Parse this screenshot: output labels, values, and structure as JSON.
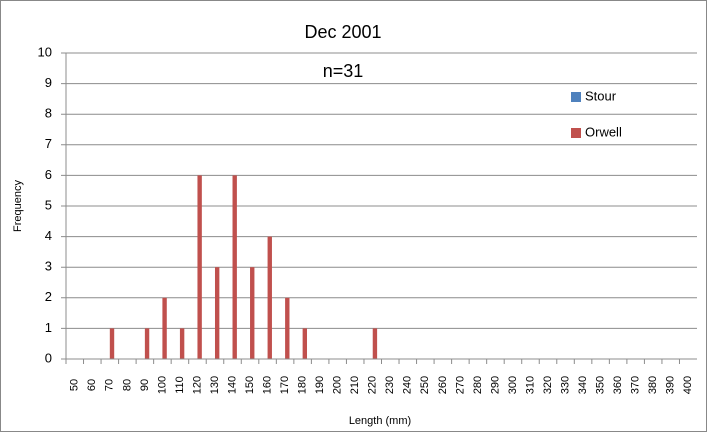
{
  "chart_data": {
    "type": "bar",
    "title": "Dec 2001",
    "subtitle": "n=31",
    "x_label": "Length (mm)",
    "y_label": "Frequency",
    "categories": [
      50,
      60,
      70,
      80,
      90,
      100,
      110,
      120,
      130,
      140,
      150,
      160,
      170,
      180,
      190,
      200,
      210,
      220,
      230,
      240,
      250,
      260,
      270,
      280,
      290,
      300,
      310,
      320,
      330,
      340,
      350,
      360,
      370,
      380,
      390,
      400
    ],
    "series": [
      {
        "name": "Stour",
        "color": "#4f81bd",
        "values": [
          0,
          0,
          0,
          0,
          0,
          0,
          0,
          0,
          0,
          0,
          0,
          0,
          0,
          0,
          0,
          0,
          0,
          0,
          0,
          0,
          0,
          0,
          0,
          0,
          0,
          0,
          0,
          0,
          0,
          0,
          0,
          0,
          0,
          0,
          0,
          0
        ]
      },
      {
        "name": "Orwell",
        "color": "#c0504d",
        "values": [
          0,
          0,
          1,
          0,
          1,
          2,
          1,
          6,
          3,
          6,
          3,
          4,
          2,
          1,
          0,
          0,
          0,
          1,
          0,
          0,
          0,
          0,
          0,
          0,
          0,
          0,
          0,
          0,
          0,
          0,
          0,
          0,
          0,
          0,
          0,
          0
        ]
      }
    ],
    "ylim": [
      0,
      10
    ],
    "yticks": [
      0,
      1,
      2,
      3,
      4,
      5,
      6,
      7,
      8,
      9,
      10
    ],
    "grid": true,
    "legend": "right"
  }
}
